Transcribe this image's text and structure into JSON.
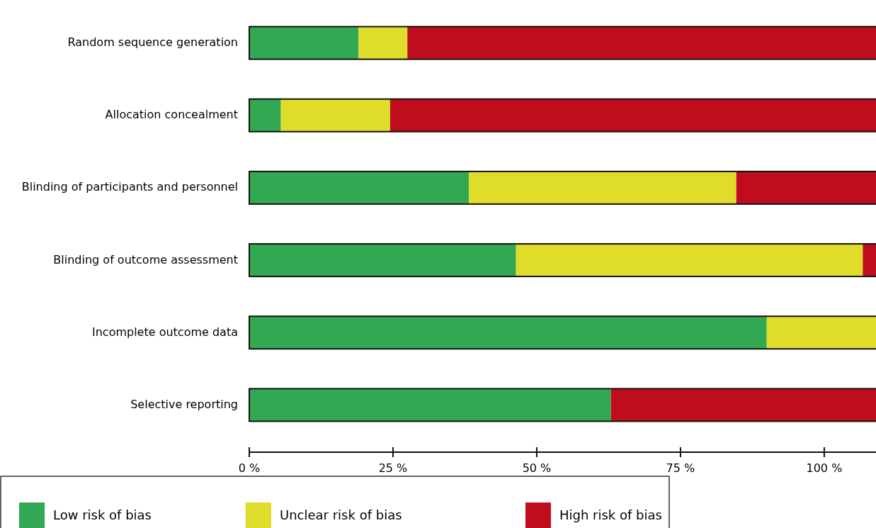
{
  "chart_data": {
    "type": "bar",
    "orientation": "horizontal",
    "stacked": true,
    "legend": "bottom",
    "categories": [
      "Random sequence generation",
      "Allocation concealment",
      "Blinding of participants and personnel",
      "Blinding of outcome assessment",
      "Incomplete outcome data",
      "Selective reporting"
    ],
    "series": [
      {
        "name": "Low risk of bias",
        "color": "#33a853",
        "values": [
          19.0,
          5.5,
          38.2,
          46.4,
          90.0,
          62.9
        ]
      },
      {
        "name": "Unclear risk of bias",
        "color": "#e0dd2a",
        "values": [
          8.5,
          19.0,
          46.5,
          60.3,
          19.0,
          null
        ]
      },
      {
        "name": "High risk of bias",
        "color": "#c00d1e",
        "values": [
          81.5,
          84.5,
          24.3,
          2.3,
          null,
          46.1
        ]
      }
    ],
    "xlim": [
      0,
      109
    ],
    "xticks": [
      {
        "value": 0,
        "label": "0 %"
      },
      {
        "value": 25,
        "label": "25 %"
      },
      {
        "value": 50,
        "label": "50 %"
      },
      {
        "value": 75,
        "label": "75 %"
      },
      {
        "value": 100,
        "label": "100 %"
      }
    ]
  }
}
